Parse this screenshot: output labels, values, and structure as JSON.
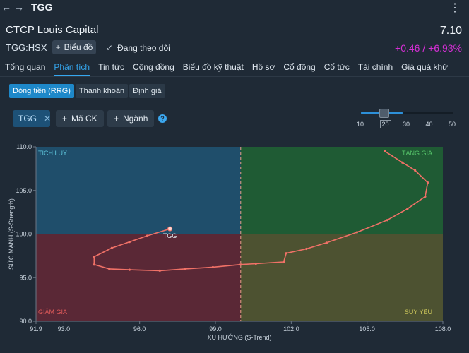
{
  "topbar": {
    "back": "←",
    "forward": "→",
    "ticker": "TGG",
    "more": "⋮"
  },
  "header": {
    "company": "CTCP Louis Capital",
    "price": "7.10",
    "exchange": "TGG:HSX",
    "chart_button": "Biểu đồ",
    "follow": "Đang theo dõi",
    "change": "+0.46 / +6.93%"
  },
  "tabs": [
    "Tổng quan",
    "Phân tích",
    "Tin tức",
    "Cộng đồng",
    "Biểu đồ kỹ thuật",
    "Hồ sơ",
    "Cổ đông",
    "Cổ tức",
    "Tài chính",
    "Giá quá khứ"
  ],
  "active_tab": "Phân tích",
  "subtabs": [
    "Dòng tiền (RRG)",
    "Thanh khoản",
    "Định giá"
  ],
  "controls": {
    "chip": "TGG",
    "add_stock": "Mã CK",
    "add_sector": "Ngành",
    "help": "?",
    "slider_value": 20,
    "slider_ticks": [
      "10",
      "20",
      "30",
      "40",
      "50"
    ]
  },
  "colors": {
    "accent": "#35a7ef",
    "change": "#d62fd6",
    "leading": "#1f5b34",
    "improving": "#1f4e6b",
    "lagging": "#5a2836",
    "weakening": "#4d5231",
    "trail": "#f07167"
  },
  "chart_data": {
    "type": "scatter",
    "xlabel": "XU HƯỚNG (S-Trend)",
    "ylabel": "SỨC MẠNH (S-Strength)",
    "xlim": [
      91.9,
      108.0
    ],
    "ylim": [
      90.0,
      110.0
    ],
    "x_ticks": [
      "91.9",
      "93.0",
      "96.0",
      "99.0",
      "102.0",
      "105.0",
      "108.0"
    ],
    "x_tick_values": [
      91.9,
      93.0,
      96.0,
      99.0,
      102.0,
      105.0,
      108.0
    ],
    "y_ticks": [
      "110.0",
      "105.0",
      "100.0",
      "95.0",
      "90.0"
    ],
    "y_tick_values": [
      110.0,
      105.0,
      100.0,
      95.0,
      90.0
    ],
    "center": [
      100.0,
      100.0
    ],
    "quadrants": {
      "top_left": "TÍCH LUỸ",
      "top_right": "TĂNG GIÁ",
      "bottom_left": "GIẢM GIÁ",
      "bottom_right": "SUY YẾU"
    },
    "series": [
      {
        "name": "TGG",
        "points": [
          [
            105.7,
            109.5
          ],
          [
            106.4,
            108.2
          ],
          [
            106.9,
            107.3
          ],
          [
            107.4,
            105.9
          ],
          [
            107.3,
            104.3
          ],
          [
            106.6,
            102.9
          ],
          [
            105.8,
            101.6
          ],
          [
            104.6,
            100.2
          ],
          [
            103.4,
            99.0
          ],
          [
            102.6,
            98.3
          ],
          [
            101.8,
            97.8
          ],
          [
            101.7,
            96.8
          ],
          [
            100.6,
            96.6
          ],
          [
            100.0,
            96.5
          ],
          [
            98.9,
            96.2
          ],
          [
            97.8,
            96.0
          ],
          [
            96.8,
            95.8
          ],
          [
            95.6,
            95.9
          ],
          [
            94.8,
            96.0
          ],
          [
            94.2,
            96.5
          ],
          [
            94.2,
            97.4
          ],
          [
            94.9,
            98.4
          ],
          [
            95.6,
            99.1
          ],
          [
            96.3,
            99.8
          ],
          [
            97.2,
            100.6
          ]
        ],
        "label": "TGG"
      }
    ]
  }
}
